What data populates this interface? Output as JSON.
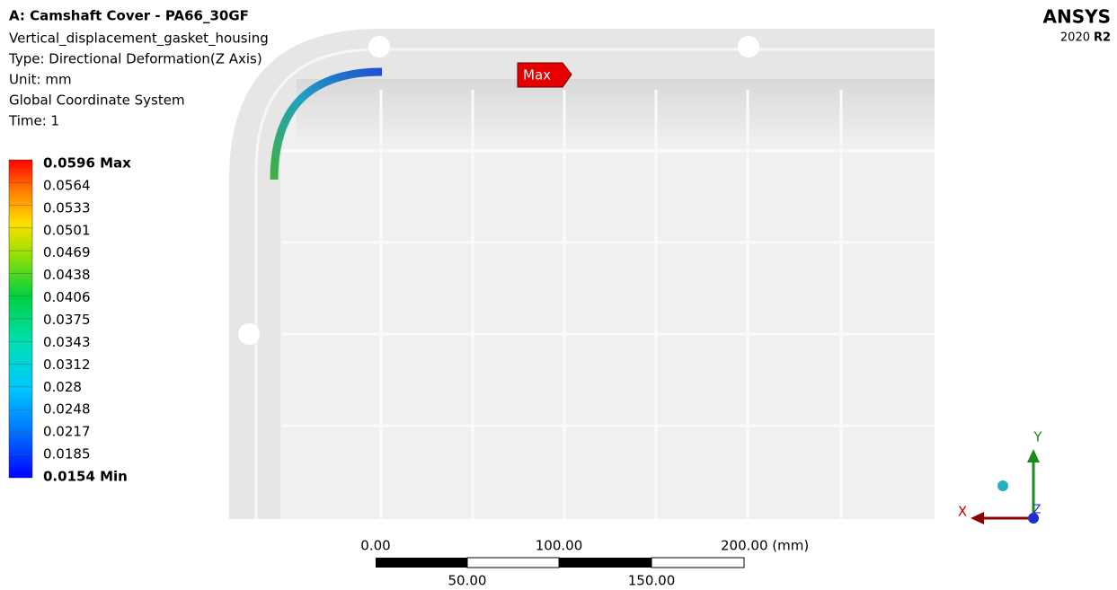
{
  "header": {
    "title": "A: Camshaft Cover - PA66_30GF",
    "lines": [
      "Vertical_displacement_gasket_housing",
      "Type: Directional Deformation(Z Axis)",
      "Unit: mm",
      "Global Coordinate System",
      "Time: 1"
    ]
  },
  "legend": {
    "labels": [
      "0.0596 Max",
      "0.0564",
      "0.0533",
      "0.0501",
      "0.0469",
      "0.0438",
      "0.0406",
      "0.0375",
      "0.0343",
      "0.0312",
      "0.028",
      "0.0248",
      "0.0217",
      "0.0185",
      "0.0154 Min"
    ]
  },
  "probe": {
    "label": "Max"
  },
  "brand": {
    "name": "ANSYS",
    "year": "2020",
    "release": "R2"
  },
  "scale_bar": {
    "top_labels": [
      "0.00",
      "100.00",
      "200.00 (mm)"
    ],
    "bottom_labels": [
      "50.00",
      "150.00"
    ]
  },
  "triad": {
    "x": "X",
    "y": "Y",
    "z": "Z"
  }
}
